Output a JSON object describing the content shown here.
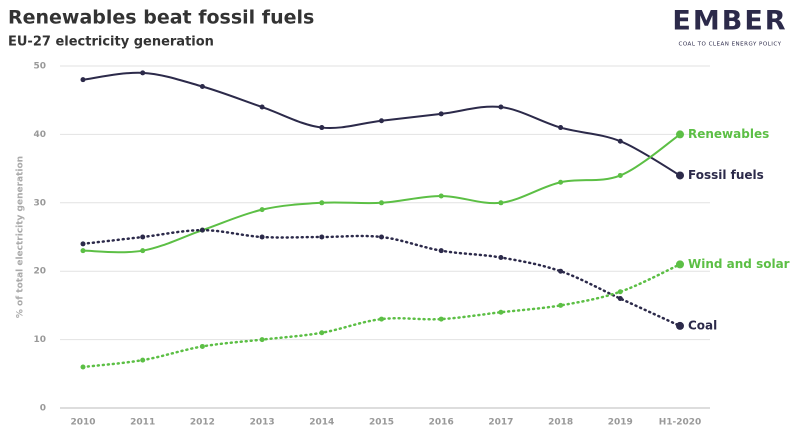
{
  "chart_data": {
    "type": "line",
    "title": "Renewables beat fossil fuels",
    "subtitle": "EU-27 electricity generation",
    "logo": "EMBER",
    "logo_tagline": "COAL TO CLEAN ENERGY POLICY",
    "y_label": "% of total electricity generation",
    "categories": [
      "2010",
      "2011",
      "2012",
      "2013",
      "2014",
      "2015",
      "2016",
      "2017",
      "2018",
      "2019",
      "H1-2020"
    ],
    "series": [
      {
        "name": "Fossil fuels",
        "color": "#2c2a4a",
        "style": "solid",
        "values": [
          48,
          49,
          47,
          44,
          41,
          42,
          43,
          44,
          41,
          39,
          34
        ]
      },
      {
        "name": "Renewables",
        "color": "#5cbf45",
        "style": "solid",
        "values": [
          23,
          23,
          26,
          29,
          30,
          30,
          31,
          30,
          33,
          34,
          40
        ]
      },
      {
        "name": "Coal",
        "color": "#2c2a4a",
        "style": "dotted",
        "values": [
          24,
          25,
          26,
          25,
          25,
          25,
          23,
          22,
          20,
          16,
          12
        ]
      },
      {
        "name": "Wind and solar",
        "color": "#5cbf45",
        "style": "dotted",
        "values": [
          6,
          7,
          9,
          10,
          11,
          13,
          13,
          14,
          15,
          17,
          21
        ]
      }
    ],
    "ylim": [
      0,
      50
    ],
    "yticks": [
      0,
      10,
      20,
      30,
      40,
      50
    ],
    "grid": true
  }
}
